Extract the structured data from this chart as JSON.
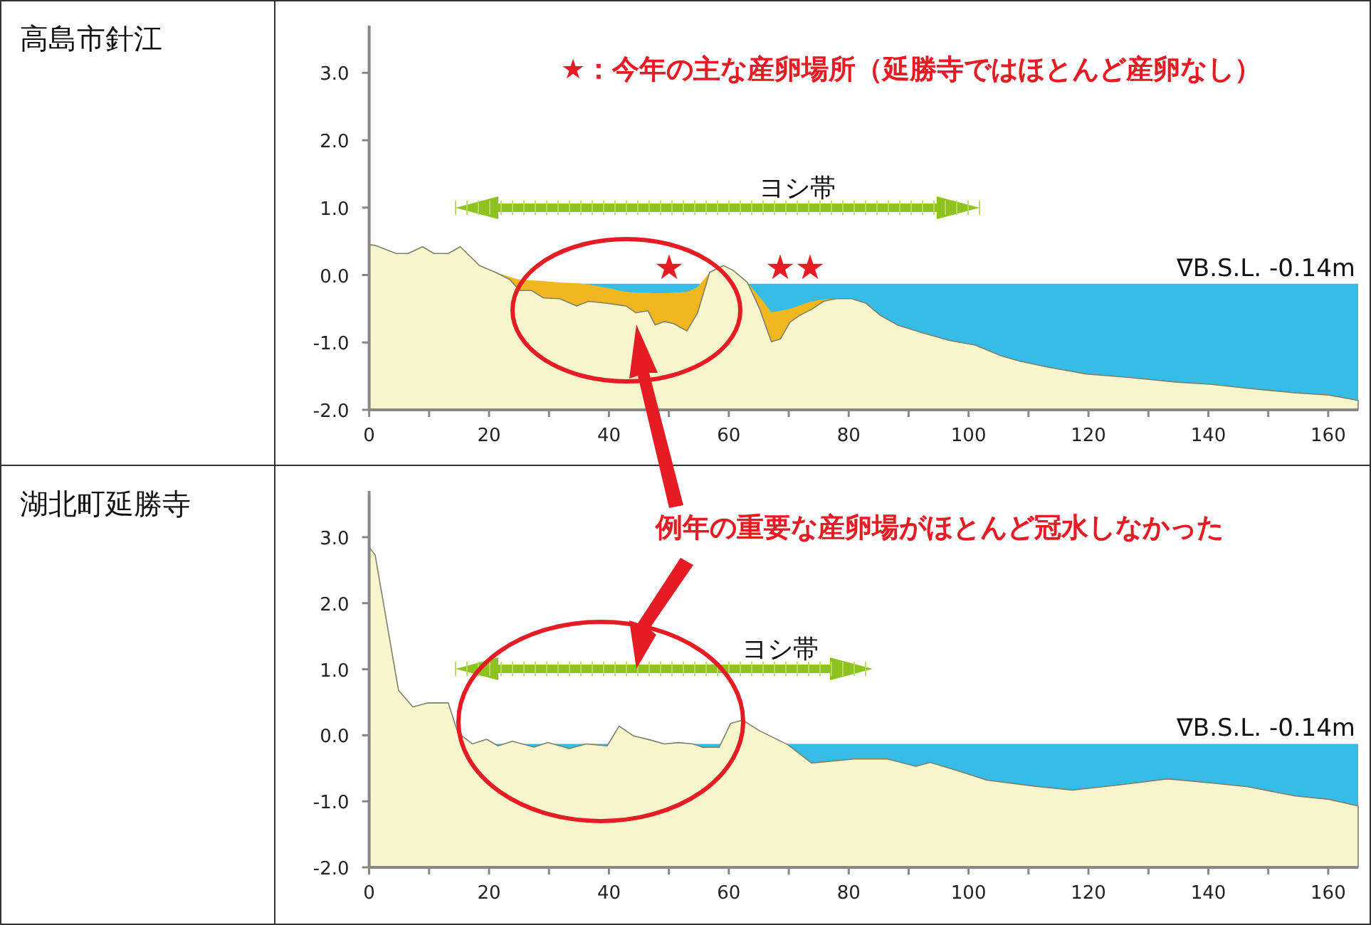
{
  "chart_data": [
    {
      "type": "area",
      "title": "高島市針江",
      "xlim": [
        0,
        165
      ],
      "ylim": [
        -2,
        3.7
      ],
      "xticks": [
        0,
        {
          "value": 10,
          "label": null
        },
        20,
        {
          "value": 30,
          "label": null
        },
        40,
        {
          "value": 50,
          "label": null
        },
        60,
        {
          "value": 70,
          "label": null
        },
        80,
        {
          "value": 90,
          "label": null
        },
        100,
        {
          "value": 110,
          "label": null
        },
        120,
        {
          "value": 130,
          "label": null
        },
        140,
        {
          "value": 150,
          "label": null
        },
        160
      ],
      "yticks": [
        {
          "value": -2,
          "label": "-2.0"
        },
        {
          "value": -1,
          "label": "-1.0"
        },
        {
          "value": 0,
          "label": "0.0"
        },
        {
          "value": 1,
          "label": "1.0"
        },
        {
          "value": 2,
          "label": "2.0"
        },
        {
          "value": 3,
          "label": "3.0"
        }
      ],
      "series": [
        {
          "color": "#f0b81e",
          "x": [
            21.1,
            21.1,
            23.5,
            25.1,
            27.1,
            29.1,
            31.8,
            34.6,
            36.6,
            39.7,
            42.9,
            44.5,
            46.5,
            47.7,
            49.2,
            50.8,
            53,
            54.8,
            56.8,
            56.8
          ],
          "values": [
            -2,
            0.04,
            -0.03,
            -0.07,
            -0.08,
            -0.09,
            -0.11,
            -0.12,
            -0.14,
            -0.19,
            -0.25,
            -0.26,
            -0.26,
            -0.27,
            -0.27,
            -0.26,
            -0.25,
            -0.18,
            0.04,
            -2
          ]
        },
        {
          "color": "#f0b81e",
          "x": [
            63.1,
            63.1,
            65.1,
            67.1,
            68.6,
            70.2,
            71.8,
            73.8,
            75.8,
            77.8,
            77.8
          ],
          "values": [
            -2,
            -0.11,
            -0.32,
            -0.55,
            -0.53,
            -0.5,
            -0.45,
            -0.39,
            -0.36,
            -0.35,
            -2
          ]
        },
        {
          "color": "#f8f6cc",
          "x": [
            0,
            0,
            1,
            4.5,
            6.5,
            8.9,
            10.8,
            13.2,
            15.2,
            18.4,
            21.1,
            23.5,
            25.1,
            27.1,
            29.1,
            31.8,
            34.6,
            36.6,
            39.7,
            42.9,
            44.5,
            46.5,
            47.7,
            49.2,
            50.8,
            53,
            54.8,
            56.8,
            59.1,
            60.7,
            63.1,
            65.1,
            67.1,
            68.6,
            70.2,
            71.8,
            73.8,
            75.8,
            77.8,
            80.5,
            82.9,
            85.3,
            88.1,
            92,
            96.8,
            101.1,
            105.5,
            108.6,
            113.4,
            119.7,
            126.8,
            134.8,
            140.3,
            146.6,
            154.6,
            160.1,
            165,
            165
          ],
          "values": [
            -2,
            0.45,
            0.44,
            0.32,
            0.32,
            0.42,
            0.32,
            0.32,
            0.42,
            0.14,
            0.04,
            -0.07,
            -0.23,
            -0.23,
            -0.34,
            -0.35,
            -0.46,
            -0.39,
            -0.42,
            -0.46,
            -0.56,
            -0.53,
            -0.74,
            -0.69,
            -0.72,
            -0.83,
            -0.56,
            0.04,
            0.14,
            0.07,
            -0.11,
            -0.49,
            -0.99,
            -0.95,
            -0.7,
            -0.6,
            -0.51,
            -0.39,
            -0.35,
            -0.35,
            -0.42,
            -0.6,
            -0.74,
            -0.85,
            -0.97,
            -1.04,
            -1.2,
            -1.28,
            -1.37,
            -1.47,
            -1.52,
            -1.59,
            -1.62,
            -1.68,
            -1.75,
            -1.78,
            -1.86,
            -2
          ]
        }
      ],
      "bands": [
        {
          "axis": "y",
          "from": -2,
          "to": -0.14,
          "color": "#35bde8"
        }
      ],
      "ref_lines": [
        {
          "axis": "y",
          "value": -0.14,
          "label": "∇B.S.L. -0.14m",
          "color": "#35bde8"
        }
      ],
      "annotations": [
        "★：今年の主な産卵場所（延勝寺ではほとんど産卵なし）",
        "★",
        "★",
        "★",
        "ヨシ帯"
      ]
    },
    {
      "type": "area",
      "title": "湖北町延勝寺",
      "xlim": [
        0,
        165
      ],
      "ylim": [
        -2,
        3.7
      ],
      "xticks": [
        0,
        {
          "value": 10,
          "label": null
        },
        20,
        {
          "value": 30,
          "label": null
        },
        40,
        {
          "value": 50,
          "label": null
        },
        60,
        {
          "value": 70,
          "label": null
        },
        80,
        {
          "value": 90,
          "label": null
        },
        100,
        {
          "value": 110,
          "label": null
        },
        120,
        {
          "value": 130,
          "label": null
        },
        140,
        {
          "value": 150,
          "label": null
        },
        160
      ],
      "yticks": [
        {
          "value": -2,
          "label": "-2.0"
        },
        {
          "value": -1,
          "label": "-1.0"
        },
        {
          "value": 0,
          "label": "0.0"
        },
        {
          "value": 1,
          "label": "1.0"
        },
        {
          "value": 2,
          "label": "2.0"
        },
        {
          "value": 3,
          "label": "3.0"
        }
      ],
      "series": [
        {
          "color": "#f8f6cc",
          "x": [
            0,
            0,
            1,
            4.9,
            7.3,
            9.7,
            13.2,
            14.8,
            17.2,
            19.6,
            21.5,
            23.9,
            27.5,
            29.8,
            33.4,
            36.2,
            39.7,
            41.7,
            44.1,
            46.9,
            49.2,
            51.6,
            54,
            55.6,
            58.4,
            60.3,
            62.3,
            65.1,
            69.8,
            73.8,
            80.9,
            86.5,
            91.2,
            93.6,
            98.3,
            103.1,
            111,
            117.3,
            125.3,
            133.2,
            140.3,
            146.6,
            154.6,
            160.1,
            165,
            165
          ],
          "values": [
            -2,
            2.85,
            2.73,
            0.68,
            0.43,
            0.49,
            0.49,
            0.04,
            -0.13,
            -0.06,
            -0.16,
            -0.09,
            -0.18,
            -0.11,
            -0.2,
            -0.13,
            -0.16,
            0.14,
            -0.01,
            -0.07,
            -0.13,
            -0.11,
            -0.13,
            -0.18,
            -0.18,
            0.18,
            0.23,
            0.07,
            -0.14,
            -0.42,
            -0.36,
            -0.36,
            -0.47,
            -0.41,
            -0.54,
            -0.68,
            -0.77,
            -0.83,
            -0.75,
            -0.66,
            -0.72,
            -0.78,
            -0.92,
            -0.97,
            -1.07,
            -2
          ]
        }
      ],
      "bands": [
        {
          "axis": "y",
          "from": -2,
          "to": -0.14,
          "color": "#35bde8"
        }
      ],
      "ref_lines": [
        {
          "axis": "y",
          "value": -0.14,
          "label": "∇B.S.L. -0.14m",
          "color": "#35bde8"
        }
      ],
      "annotations": [
        "例年の重要な産卵場がほとんど冠水しなかった",
        "ヨシ帯"
      ]
    }
  ]
}
